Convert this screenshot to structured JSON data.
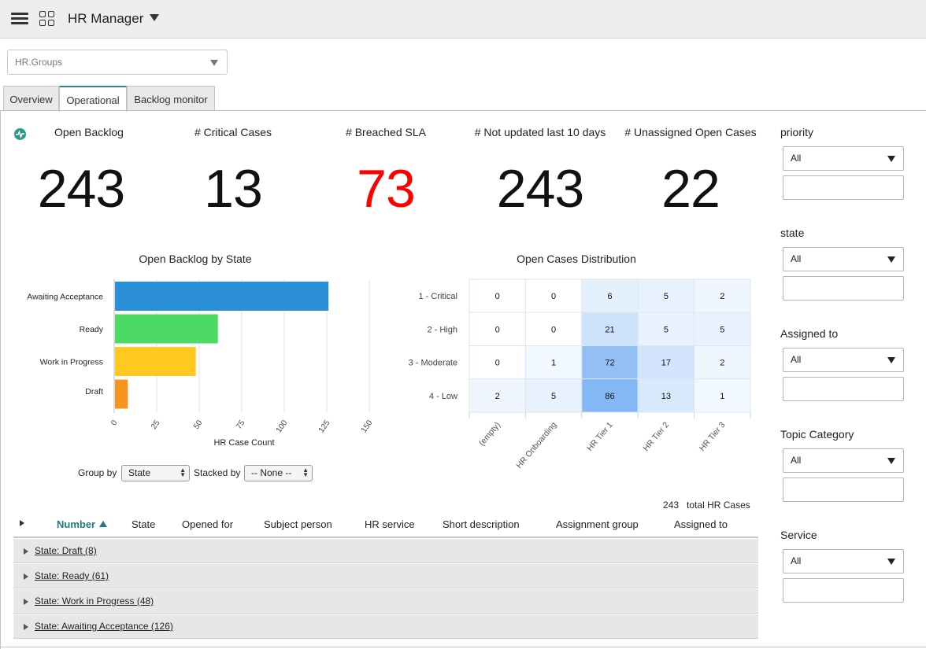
{
  "header": {
    "title": "HR Manager",
    "icons": [
      "hamburger-icon",
      "grid-icon",
      "caret-down-icon"
    ]
  },
  "group_select": {
    "value": "HR.Groups"
  },
  "tabs": [
    {
      "label": "Overview",
      "active": false
    },
    {
      "label": "Operational",
      "active": true
    },
    {
      "label": "Backlog monitor",
      "active": false
    }
  ],
  "kpis": [
    {
      "label": "Open Backlog",
      "value": "243",
      "color": "#111111"
    },
    {
      "label": "# Critical Cases",
      "value": "13",
      "color": "#111111"
    },
    {
      "label": "# Breached SLA",
      "value": "73",
      "color": "#ff0000"
    },
    {
      "label": "# Not updated last 10 days",
      "value": "243",
      "color": "#111111"
    },
    {
      "label": "# Unassigned Open Cases",
      "value": "22",
      "color": "#111111"
    }
  ],
  "chart_data": [
    {
      "type": "bar",
      "orientation": "horizontal",
      "title": "Open Backlog by State",
      "categories": [
        "Awaiting Acceptance",
        "Ready",
        "Work in Progress",
        "Draft"
      ],
      "values": [
        126,
        61,
        48,
        8
      ],
      "colors": [
        "#2b8fd6",
        "#4cd964",
        "#ffc91f",
        "#f7941d"
      ],
      "xlabel": "HR Case Count",
      "xlim": [
        0,
        150
      ],
      "xticks": [
        "0",
        "25",
        "50",
        "75",
        "100",
        "125",
        "150"
      ],
      "grid": true
    },
    {
      "type": "heatmap",
      "title": "Open Cases Distribution",
      "rows": [
        "1 - Critical",
        "2 - High",
        "3 - Moderate",
        "4 - Low"
      ],
      "columns": [
        "(empty)",
        "HR Onboarding",
        "HR Tier 1",
        "HR Tier 2",
        "HR Tier 3"
      ],
      "values": [
        [
          0,
          0,
          6,
          5,
          2
        ],
        [
          0,
          0,
          21,
          5,
          5
        ],
        [
          0,
          1,
          72,
          17,
          2
        ],
        [
          2,
          5,
          86,
          13,
          1
        ]
      ]
    }
  ],
  "controls": {
    "group_by_label": "Group by",
    "group_by_value": "State",
    "stacked_by_label": "Stacked by",
    "stacked_by_value": "-- None --"
  },
  "filters": [
    {
      "label": "priority",
      "value": "All"
    },
    {
      "label": "state",
      "value": "All"
    },
    {
      "label": "Assigned to",
      "value": "All"
    },
    {
      "label": "Topic Category",
      "value": "All"
    },
    {
      "label": "Service",
      "value": "All"
    }
  ],
  "list": {
    "total_count": "243",
    "total_label": "total HR Cases",
    "columns": [
      "Number",
      "State",
      "Opened for",
      "Subject person",
      "HR service",
      "Short description",
      "Assignment group",
      "Assigned to"
    ],
    "sorted_column": "Number",
    "groups": [
      "State: Draft (8)",
      "State: Ready (61)",
      "State: Work in Progress (48)",
      "State: Awaiting Acceptance (126)"
    ]
  }
}
